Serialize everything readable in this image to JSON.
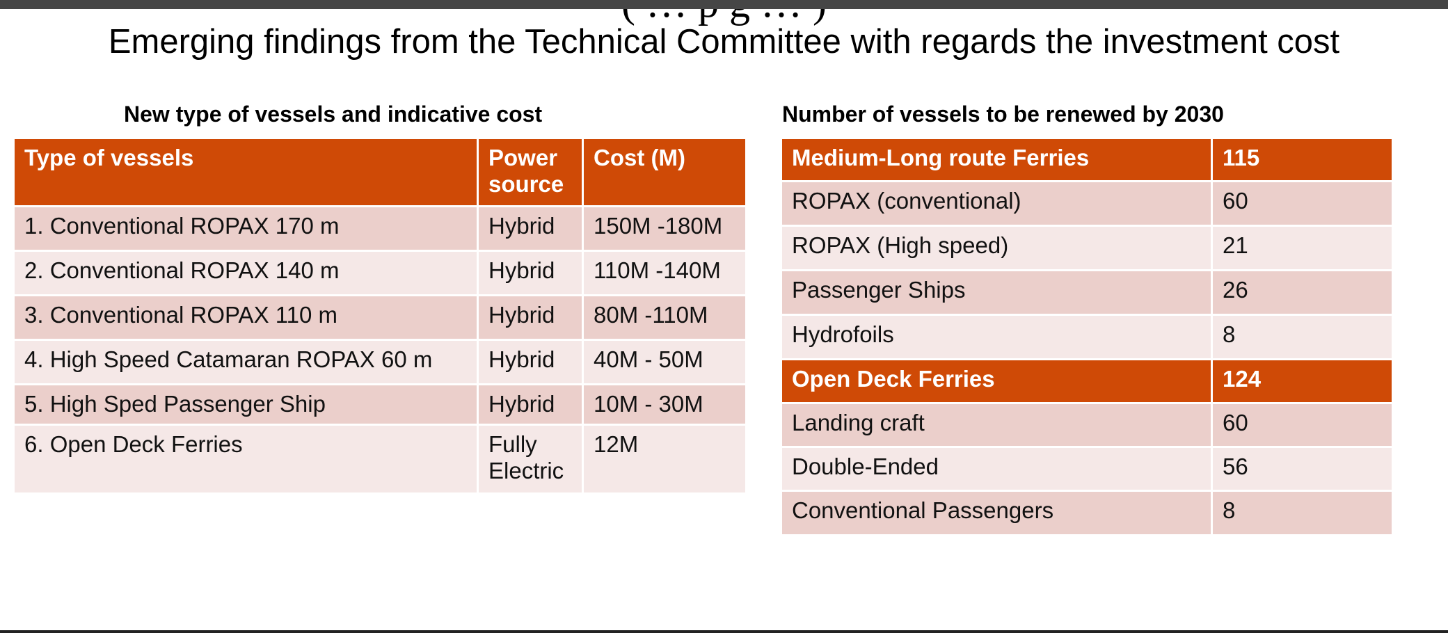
{
  "slide": {
    "title": "Emerging findings from the Technical Committee with regards the investment cost",
    "cut_title": "( … p g … )"
  },
  "left_table": {
    "caption": "New type of vessels and indicative cost",
    "headers": [
      "Type of vessels",
      "Power source",
      "Cost (M)"
    ],
    "rows": [
      [
        "1. Conventional ROPAX 170 m",
        "Hybrid",
        "150M -180M"
      ],
      [
        "2. Conventional ROPAX 140 m",
        "Hybrid",
        "110M -140M"
      ],
      [
        "3. Conventional ROPAX 110 m",
        "Hybrid",
        "80M -110M"
      ],
      [
        "4. High Speed Catamaran ROPAX 60 m",
        "Hybrid",
        "40M - 50M"
      ],
      [
        "5. High Sped  Passenger Ship",
        "Hybrid",
        "10M - 30M"
      ],
      [
        "6. Open Deck Ferries",
        "Fully Electric",
        "12M"
      ]
    ]
  },
  "right_table": {
    "caption": "Number of vessels to be renewed by 2030",
    "rows": [
      [
        "Medium-Long route Ferries",
        "115"
      ],
      [
        "ROPAX (conventional)",
        "60"
      ],
      [
        "ROPAX (High speed)",
        "21"
      ],
      [
        "Passenger Ships",
        "26"
      ],
      [
        "Hydrofoils",
        "8"
      ],
      [
        "Open Deck Ferries",
        "124"
      ],
      [
        "Landing craft",
        "60"
      ],
      [
        "Double-Ended",
        "56"
      ],
      [
        "Conventional Passengers",
        "8"
      ]
    ]
  },
  "colors": {
    "header": "#CF4A06",
    "row_dark": "#EBCFCB",
    "row_light": "#F5E8E7"
  }
}
